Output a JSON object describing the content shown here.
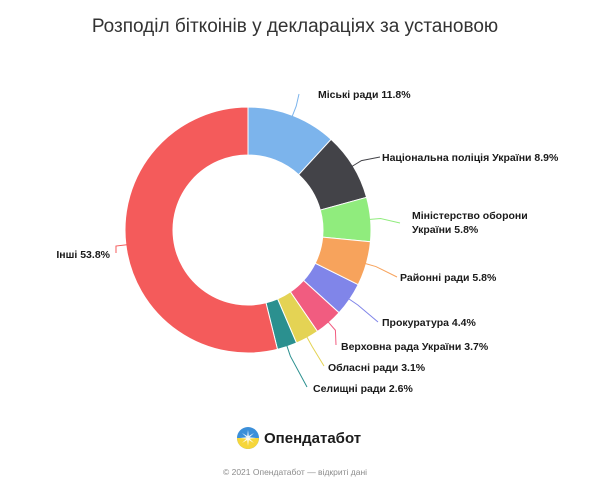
{
  "chart_data": {
    "type": "pie",
    "title": "Розподіл біткоінів у деклараціях за установою",
    "slices": [
      {
        "label": "Міські ради 11.8%",
        "value": 11.8,
        "color": "#7cb4ec"
      },
      {
        "label": "Національна поліція України 8.9%",
        "value": 8.9,
        "color": "#434348"
      },
      {
        "label": "Міністерство оборони",
        "label_line2": "України 5.8%",
        "value": 5.8,
        "color": "#90ec7d"
      },
      {
        "label": "Районні ради 5.8%",
        "value": 5.8,
        "color": "#f7a35c"
      },
      {
        "label": "Прокуратура 4.4%",
        "value": 4.4,
        "color": "#8085e9"
      },
      {
        "label": "Верховна рада України 3.7%",
        "value": 3.7,
        "color": "#f15c80"
      },
      {
        "label": "Обласні ради 3.1%",
        "value": 3.1,
        "color": "#e4d354"
      },
      {
        "label": "Селищні ради 2.6%",
        "value": 2.6,
        "color": "#2b908f"
      },
      {
        "label": "Інші 53.8%",
        "value": 53.8,
        "color": "#f45b5b"
      }
    ]
  },
  "brand": {
    "name": "Опендатабот",
    "logo_icon": "opendatabot-logo-icon"
  },
  "footer": {
    "text": "© 2021 Опендатабот — відкриті дані"
  }
}
